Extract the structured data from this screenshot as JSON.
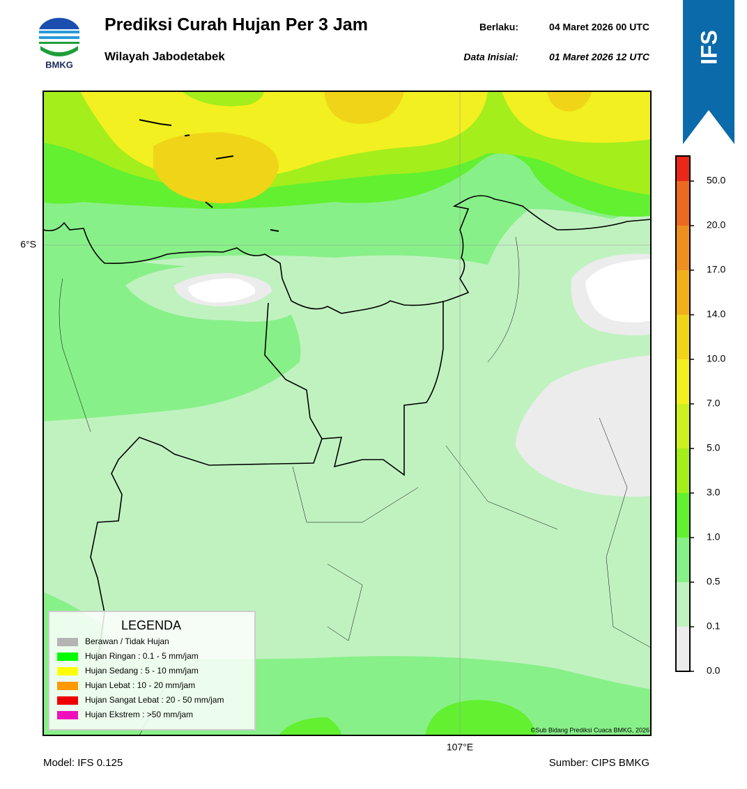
{
  "header": {
    "title": "Prediksi Curah Hujan Per 3 Jam",
    "subtitle": "Wilayah Jabodetabek",
    "valid_label": "Berlaku:",
    "valid_time": "04 Maret 2026 00 UTC",
    "init_label": "Data Inisial:",
    "init_time": "01 Maret 2026 12 UTC",
    "logo_text": "BMKG",
    "model_badge": "IFS"
  },
  "map": {
    "lat_label": "6°S",
    "lon_label": "107°E",
    "credit": "©Sub Bidang Prediksi Cuaca BMKG, 2026"
  },
  "legend": {
    "title": "LEGENDA",
    "items": [
      {
        "label": "Berawan / Tidak Hujan",
        "color": "#b4b4b4"
      },
      {
        "label": "Hujan Ringan : 0.1 - 5 mm/jam",
        "color": "#00ff00"
      },
      {
        "label": "Hujan Sedang : 5 - 10 mm/jam",
        "color": "#ffff00"
      },
      {
        "label": "Hujan Lebat : 10 - 20 mm/jam",
        "color": "#ff9900"
      },
      {
        "label": "Hujan Sangat Lebat : 20 - 50 mm/jam",
        "color": "#ee0000"
      },
      {
        "label": "Hujan Ekstrem : >50 mm/jam",
        "color": "#ee11bb"
      }
    ]
  },
  "colorbar": {
    "labels": [
      "0.0",
      "0.1",
      "0.5",
      "1.0",
      "3.0",
      "5.0",
      "7.0",
      "10.0",
      "14.0",
      "17.0",
      "20.0",
      "50.0"
    ],
    "colors": [
      "#ececec",
      "#c0f2c0",
      "#88f088",
      "#62f030",
      "#a4ee1c",
      "#ccf020",
      "#f2f020",
      "#f0d418",
      "#f0b01c",
      "#ee9020",
      "#ec6a20",
      "#e82818",
      "#e020c0"
    ]
  },
  "footer": {
    "model": "Model: IFS 0.125",
    "source": "Sumber: CIPS BMKG"
  }
}
